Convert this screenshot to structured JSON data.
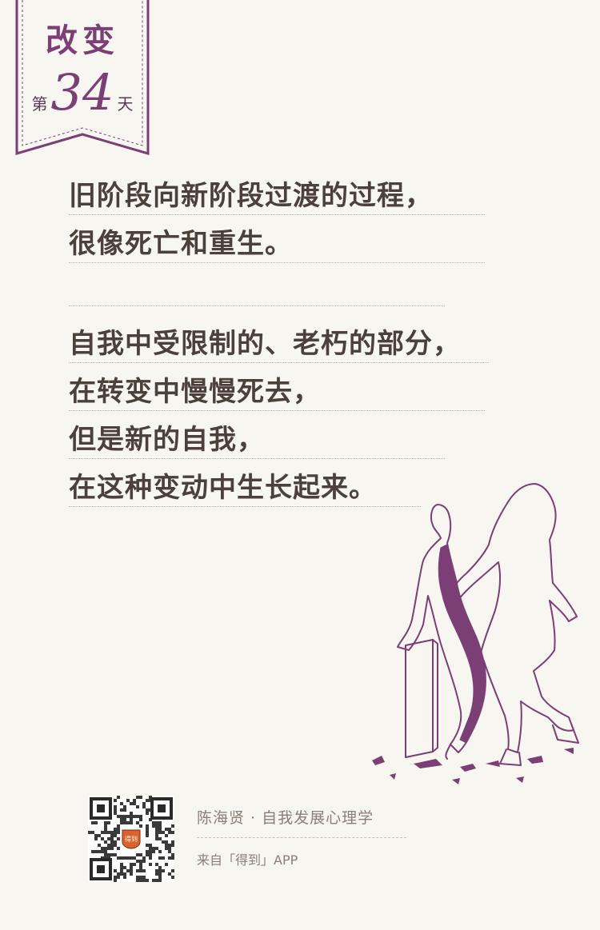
{
  "badge": {
    "title": "改变",
    "day_prefix": "第",
    "day_number": "34",
    "day_suffix": "天"
  },
  "quote": {
    "paragraph1": [
      "旧阶段向新阶段过渡的过程，",
      "很像死亡和重生。"
    ],
    "paragraph2": [
      "自我中受限制的、老朽的部分，",
      "在转变中慢慢死去，",
      "但是新的自我，",
      "在这种变动中生长起来。"
    ]
  },
  "footer": {
    "author_course": "陈海贤 · 自我发展心理学",
    "source": "来自「得到」APP",
    "qr_logo_text": "得到"
  },
  "colors": {
    "accent": "#7b3f76",
    "background": "#f8f6f0",
    "text": "#4c403b",
    "muted": "#8a7e77"
  }
}
